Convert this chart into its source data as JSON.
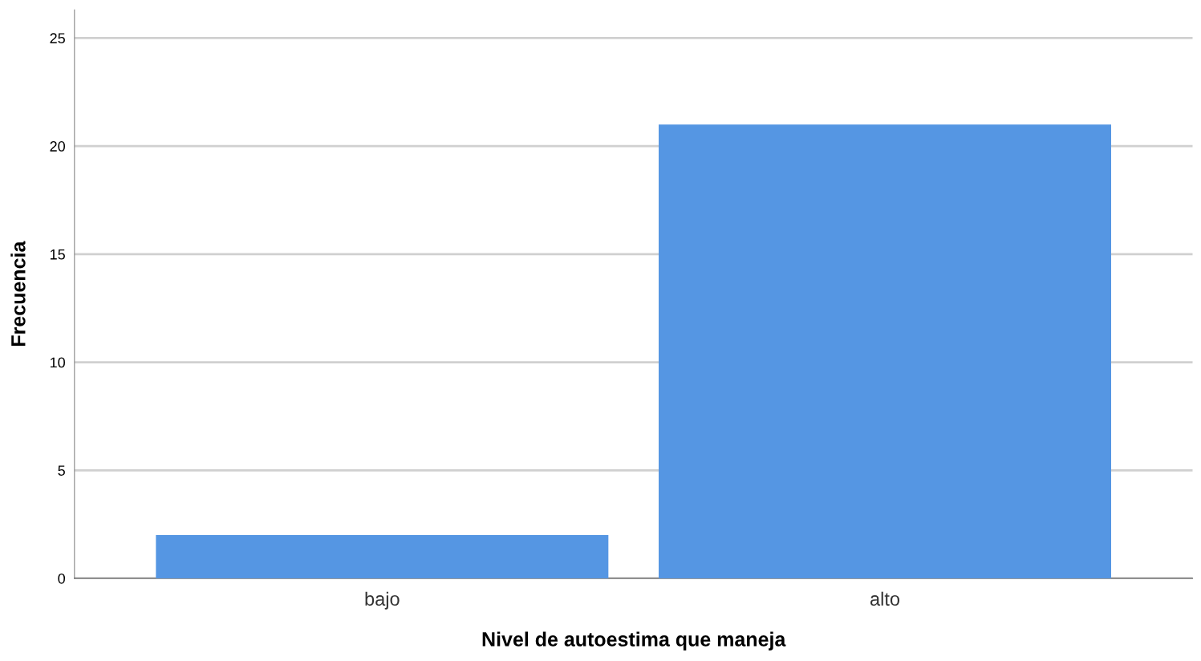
{
  "chart_data": {
    "type": "bar",
    "xlabel": "Nivel de autoestima que maneja",
    "ylabel": "Frecuencia",
    "categories": [
      "bajo",
      "alto"
    ],
    "series": [
      {
        "color": "#5596e3",
        "values": [
          2,
          21
        ]
      }
    ],
    "ylim": [
      0,
      26.3
    ],
    "yticks": [
      0,
      5,
      10,
      15,
      20,
      25
    ],
    "grid": "y",
    "legend": false
  }
}
